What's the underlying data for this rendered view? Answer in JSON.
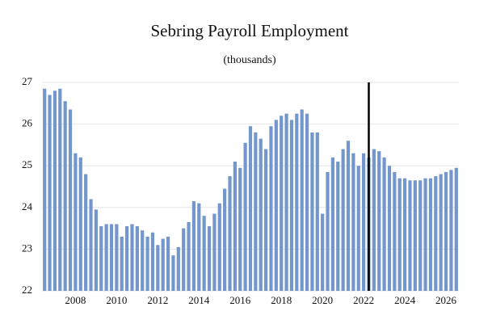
{
  "chart_data": {
    "type": "bar",
    "title": "Sebring Payroll Employment",
    "subtitle": "(thousands)",
    "categories": [
      null,
      null,
      null,
      null,
      null,
      null,
      "2008",
      null,
      null,
      null,
      null,
      null,
      null,
      null,
      "2010",
      null,
      null,
      null,
      null,
      null,
      null,
      null,
      "2012",
      null,
      null,
      null,
      null,
      null,
      null,
      null,
      "2014",
      null,
      null,
      null,
      null,
      null,
      null,
      null,
      "2016",
      null,
      null,
      null,
      null,
      null,
      null,
      null,
      "2018",
      null,
      null,
      null,
      null,
      null,
      null,
      null,
      "2020",
      null,
      null,
      null,
      null,
      null,
      null,
      null,
      "2022",
      null,
      null,
      null,
      null,
      null,
      null,
      null,
      "2024",
      null,
      null,
      null,
      null,
      null,
      null,
      null,
      "2026",
      null,
      null
    ],
    "values": [
      26.85,
      26.7,
      26.8,
      26.85,
      26.55,
      26.35,
      25.3,
      25.2,
      24.8,
      24.2,
      23.95,
      23.55,
      23.6,
      23.6,
      23.6,
      23.3,
      23.55,
      23.6,
      23.55,
      23.45,
      23.3,
      23.4,
      23.1,
      23.25,
      23.3,
      22.85,
      23.05,
      23.5,
      23.65,
      24.15,
      24.1,
      23.8,
      23.55,
      23.85,
      24.1,
      24.45,
      24.75,
      25.1,
      24.95,
      25.55,
      25.95,
      25.8,
      25.65,
      25.4,
      25.95,
      26.1,
      26.2,
      26.25,
      26.1,
      26.25,
      26.35,
      26.25,
      25.8,
      25.8,
      23.85,
      24.85,
      25.2,
      25.1,
      25.4,
      25.6,
      25.3,
      25.0,
      25.3,
      25.2,
      25.4,
      25.35,
      25.2,
      25.0,
      24.85,
      24.7,
      24.7,
      24.65,
      24.65,
      24.65,
      24.7,
      24.7,
      24.75,
      24.8,
      24.85,
      24.9,
      24.95
    ],
    "color": "#7397cc",
    "ylim": [
      22,
      27
    ],
    "yticks": [
      22,
      23,
      24,
      25,
      26,
      27
    ],
    "grid": true,
    "divider_before_category": 64
  }
}
